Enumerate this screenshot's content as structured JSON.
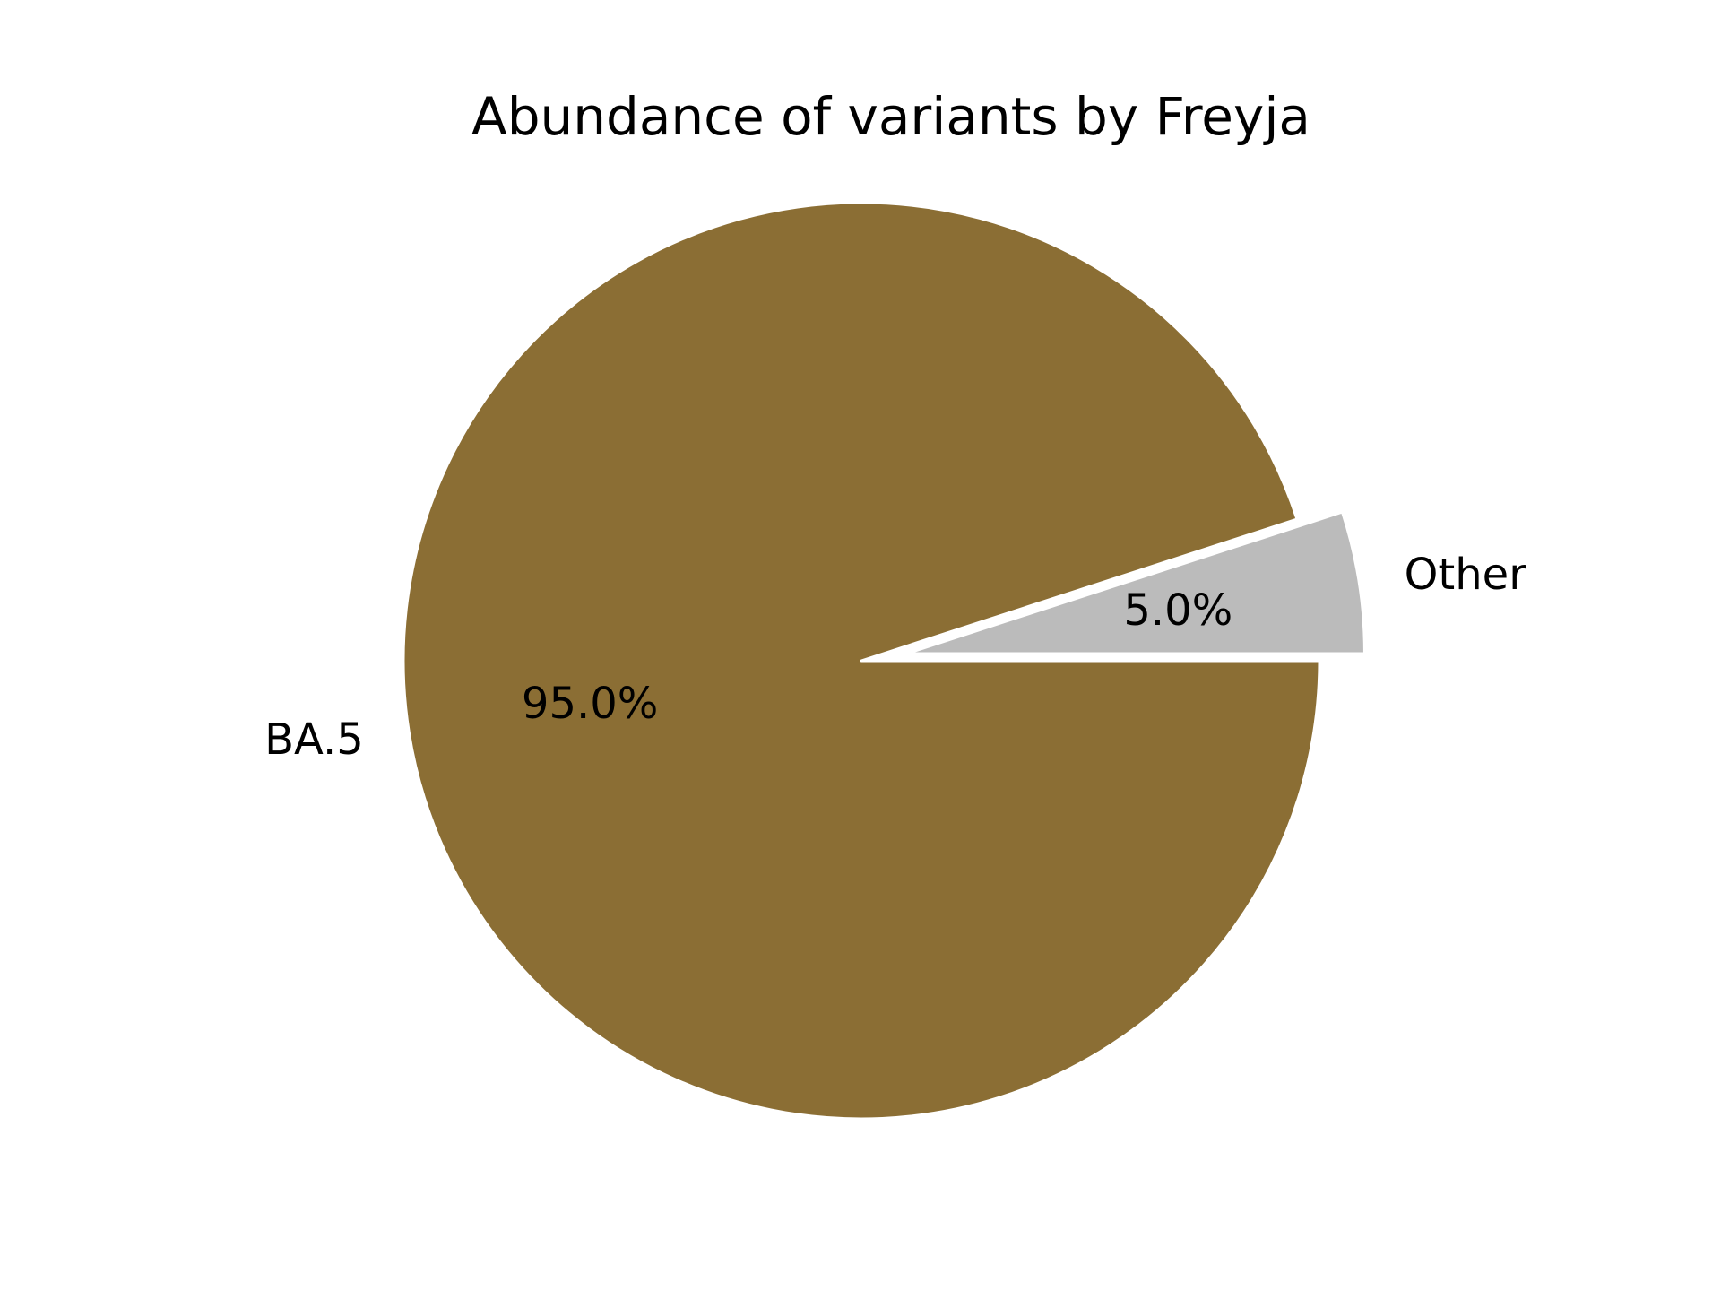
{
  "chart_data": {
    "type": "pie",
    "title": "Abundance of variants by Freyja",
    "start_angle": 0,
    "direction": "clockwise",
    "legend": "none",
    "slices": [
      {
        "label": "BA.5",
        "value": 95.0,
        "pct_label": "95.0%",
        "color": "#8b6e34",
        "explode": 0
      },
      {
        "label": "Other",
        "value": 5.0,
        "pct_label": "5.0%",
        "color": "#bbbbbb",
        "explode": 0.1
      }
    ]
  }
}
